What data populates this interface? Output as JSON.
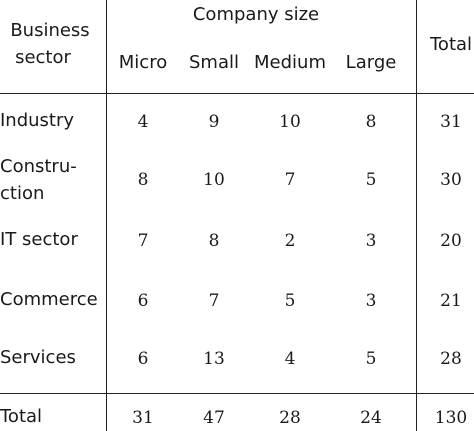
{
  "header": {
    "business_sector": [
      "Business",
      "sector"
    ],
    "company_size": "Company size",
    "columns": [
      "Micro",
      "Small",
      "Medium",
      "Large"
    ],
    "total": "Total"
  },
  "rows": [
    {
      "label": [
        "Industry"
      ],
      "values": [
        "4",
        "9",
        "10",
        "8"
      ],
      "total": "31"
    },
    {
      "label": [
        "Constru-",
        "ction"
      ],
      "values": [
        "8",
        "10",
        "7",
        "5"
      ],
      "total": "30"
    },
    {
      "label": [
        "IT sector"
      ],
      "values": [
        "7",
        "8",
        "2",
        "3"
      ],
      "total": "20"
    },
    {
      "label": [
        "Commerce"
      ],
      "values": [
        "6",
        "7",
        "5",
        "3"
      ],
      "total": "21"
    },
    {
      "label": [
        "Services"
      ],
      "values": [
        "6",
        "13",
        "4",
        "5"
      ],
      "total": "28"
    }
  ],
  "footer": {
    "label": "Total",
    "values": [
      "31",
      "47",
      "28",
      "24"
    ],
    "total": "130"
  }
}
